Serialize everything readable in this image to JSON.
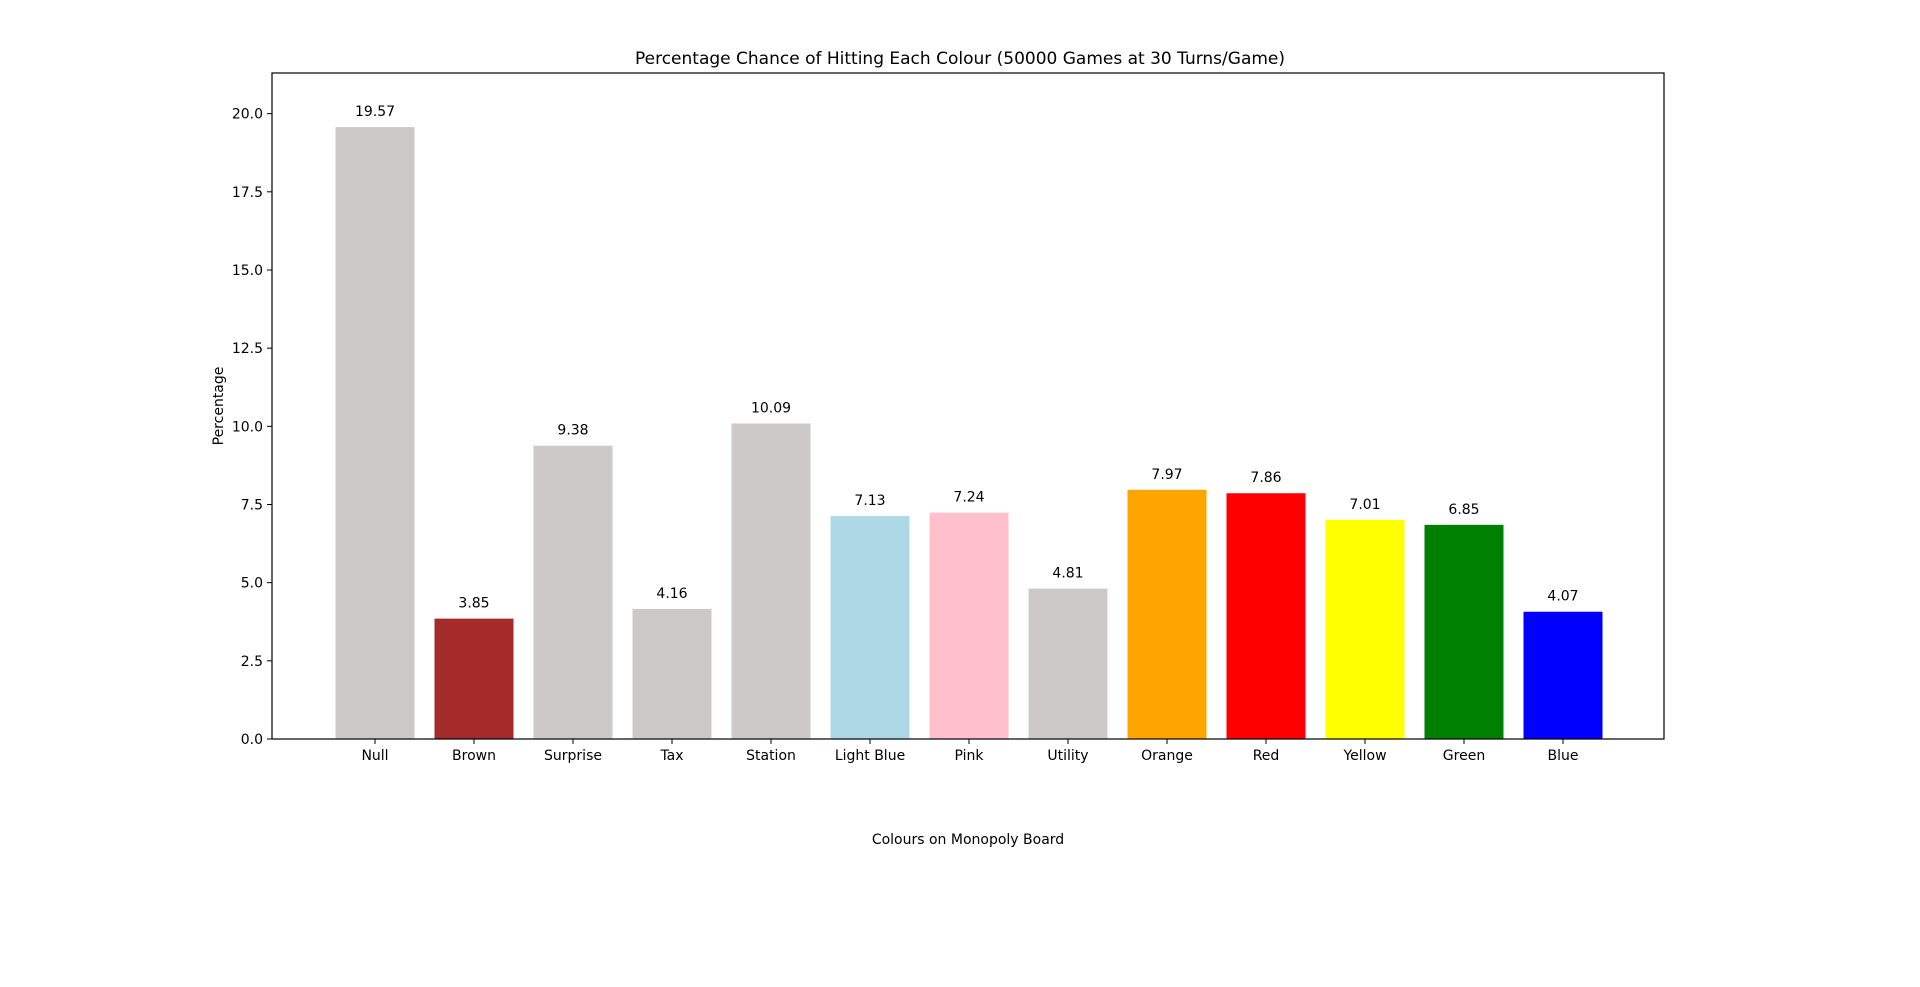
{
  "chart_data": {
    "type": "bar",
    "title": "Percentage Chance of Hitting Each Colour (50000 Games at 30 Turns/Game)",
    "xlabel": "Colours on Monopoly Board",
    "ylabel": "Percentage",
    "ylim": [
      0,
      21.3
    ],
    "yticks": [
      0.0,
      2.5,
      5.0,
      7.5,
      10.0,
      12.5,
      15.0,
      17.5,
      20.0
    ],
    "ytick_labels": [
      "0.0",
      "2.5",
      "5.0",
      "7.5",
      "10.0",
      "12.5",
      "15.0",
      "17.5",
      "20.0"
    ],
    "grid": false,
    "legend": "none",
    "categories": [
      "Null",
      "Brown",
      "Surprise",
      "Tax",
      "Station",
      "Light Blue",
      "Pink",
      "Utility",
      "Orange",
      "Red",
      "Yellow",
      "Green",
      "Blue"
    ],
    "values": [
      19.57,
      3.85,
      9.38,
      4.16,
      10.09,
      7.13,
      7.24,
      4.81,
      7.97,
      7.86,
      7.01,
      6.85,
      4.07
    ],
    "value_labels": [
      "19.57",
      "3.85",
      "9.38",
      "4.16",
      "10.09",
      "7.13",
      "7.24",
      "4.81",
      "7.97",
      "7.86",
      "7.01",
      "6.85",
      "4.07"
    ],
    "colors": [
      "#cdc9c9",
      "#a52a2a",
      "#cdc9c9",
      "#cdc9c9",
      "#cdc9c9",
      "#add8e6",
      "#ffc0cb",
      "#cdc9c9",
      "#ffa500",
      "#ff0000",
      "#ffff00",
      "#008000",
      "#0000ff"
    ]
  }
}
